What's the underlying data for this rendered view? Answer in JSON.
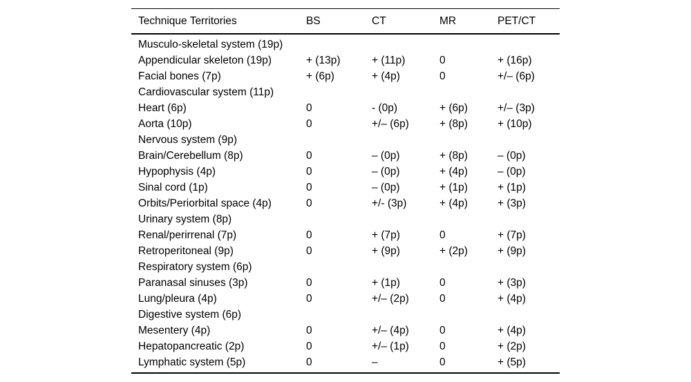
{
  "colors": {
    "background": "#ffffff",
    "text": "#000000",
    "rule": "#000000"
  },
  "table": {
    "columns": [
      "Technique Territories",
      "BS",
      "CT",
      "MR",
      "PET/CT"
    ],
    "rows": [
      {
        "label": "Musculo-skeletal system (19p)",
        "group": true,
        "values": [
          "",
          "",
          "",
          ""
        ]
      },
      {
        "label": "Appendicular skeleton (19p)",
        "group": false,
        "values": [
          "+ (13p)",
          "+ (11p)",
          "0",
          "+ (16p)"
        ]
      },
      {
        "label": "Facial bones (7p)",
        "group": false,
        "values": [
          "+ (6p)",
          "+ (4p)",
          "0",
          "+/– (6p)"
        ]
      },
      {
        "label": "Cardiovascular system (11p)",
        "group": true,
        "values": [
          "",
          "",
          "",
          ""
        ]
      },
      {
        "label": "Heart (6p)",
        "group": false,
        "values": [
          "0",
          "- (0p)",
          "+ (6p)",
          "+/– (3p)"
        ]
      },
      {
        "label": "Aorta (10p)",
        "group": false,
        "values": [
          "0",
          "+/– (6p)",
          "+ (8p)",
          "+ (10p)"
        ]
      },
      {
        "label": "Nervous system (9p)",
        "group": true,
        "values": [
          "",
          "",
          "",
          ""
        ]
      },
      {
        "label": "Brain/Cerebellum (8p)",
        "group": false,
        "values": [
          "0",
          "– (0p)",
          "+ (8p)",
          "– (0p)"
        ]
      },
      {
        "label": "Hypophysis (4p)",
        "group": false,
        "values": [
          "0",
          "– (0p)",
          "+ (4p)",
          "– (0p)"
        ]
      },
      {
        "label": "Sinal cord (1p)",
        "group": false,
        "values": [
          "0",
          "– (0p)",
          "+ (1p)",
          "+ (1p)"
        ]
      },
      {
        "label": "Orbits/Periorbital space (4p)",
        "group": false,
        "values": [
          "0",
          "+/- (3p)",
          "+ (4p)",
          "+ (3p)"
        ]
      },
      {
        "label": "Urinary system (8p)",
        "group": true,
        "values": [
          "",
          "",
          "",
          ""
        ]
      },
      {
        "label": "Renal/perirrenal (7p)",
        "group": false,
        "values": [
          "0",
          "+ (7p)",
          "0",
          "+ (7p)"
        ]
      },
      {
        "label": "Retroperitoneal (9p)",
        "group": false,
        "values": [
          "0",
          "+ (9p)",
          "+ (2p)",
          "+ (9p)"
        ]
      },
      {
        "label": "Respiratory system (6p)",
        "group": true,
        "values": [
          "",
          "",
          "",
          ""
        ]
      },
      {
        "label": "Paranasal sinuses (3p)",
        "group": false,
        "values": [
          "0",
          "+ (1p)",
          "0",
          "+ (3p)"
        ]
      },
      {
        "label": "Lung/pleura (4p)",
        "group": false,
        "values": [
          "0",
          "+/– (2p)",
          "0",
          "+ (4p)"
        ]
      },
      {
        "label": "Digestive system (6p)",
        "group": true,
        "values": [
          "",
          "",
          "",
          ""
        ]
      },
      {
        "label": "Mesentery (4p)",
        "group": false,
        "values": [
          "0",
          "+/– (4p)",
          "0",
          "+ (4p)"
        ]
      },
      {
        "label": "Hepatopancreatic (2p)",
        "group": false,
        "values": [
          "0",
          "+/– (1p)",
          "0",
          "+ (2p)"
        ]
      },
      {
        "label": "Lymphatic system (5p)",
        "group": false,
        "values": [
          "0",
          "–",
          "0",
          "+ (5p)"
        ]
      }
    ]
  },
  "chart_data": {
    "type": "table",
    "title": "",
    "columns": [
      "Technique Territories",
      "BS",
      "CT",
      "MR",
      "PET/CT"
    ],
    "rows": [
      [
        "Musculo-skeletal system (19p)",
        "",
        "",
        "",
        ""
      ],
      [
        "Appendicular skeleton (19p)",
        "+ (13p)",
        "+ (11p)",
        "0",
        "+ (16p)"
      ],
      [
        "Facial bones (7p)",
        "+ (6p)",
        "+ (4p)",
        "0",
        "+/– (6p)"
      ],
      [
        "Cardiovascular system (11p)",
        "",
        "",
        "",
        ""
      ],
      [
        "Heart (6p)",
        "0",
        "- (0p)",
        "+ (6p)",
        "+/– (3p)"
      ],
      [
        "Aorta (10p)",
        "0",
        "+/– (6p)",
        "+ (8p)",
        "+ (10p)"
      ],
      [
        "Nervous system (9p)",
        "",
        "",
        "",
        ""
      ],
      [
        "Brain/Cerebellum (8p)",
        "0",
        "– (0p)",
        "+ (8p)",
        "– (0p)"
      ],
      [
        "Hypophysis (4p)",
        "0",
        "– (0p)",
        "+ (4p)",
        "– (0p)"
      ],
      [
        "Sinal cord (1p)",
        "0",
        "– (0p)",
        "+ (1p)",
        "+ (1p)"
      ],
      [
        "Orbits/Periorbital space (4p)",
        "0",
        "+/- (3p)",
        "+ (4p)",
        "+ (3p)"
      ],
      [
        "Urinary system (8p)",
        "",
        "",
        "",
        ""
      ],
      [
        "Renal/perirrenal (7p)",
        "0",
        "+ (7p)",
        "0",
        "+ (7p)"
      ],
      [
        "Retroperitoneal (9p)",
        "0",
        "+ (9p)",
        "+ (2p)",
        "+ (9p)"
      ],
      [
        "Respiratory system (6p)",
        "",
        "",
        "",
        ""
      ],
      [
        "Paranasal sinuses (3p)",
        "0",
        "+ (1p)",
        "0",
        "+ (3p)"
      ],
      [
        "Lung/pleura (4p)",
        "0",
        "+/– (2p)",
        "0",
        "+ (4p)"
      ],
      [
        "Digestive system (6p)",
        "",
        "",
        "",
        ""
      ],
      [
        "Mesentery (4p)",
        "0",
        "+/– (4p)",
        "0",
        "+ (4p)"
      ],
      [
        "Hepatopancreatic (2p)",
        "0",
        "+/– (1p)",
        "0",
        "+ (2p)"
      ],
      [
        "Lymphatic system (5p)",
        "0",
        "–",
        "0",
        "+ (5p)"
      ]
    ]
  }
}
